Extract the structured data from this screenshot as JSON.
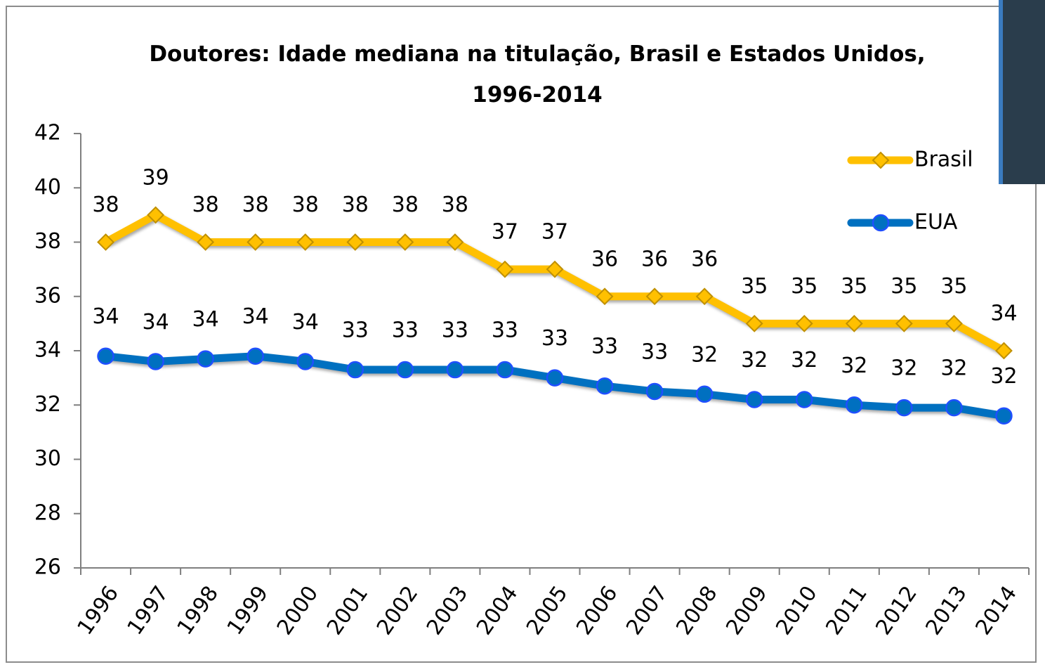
{
  "chart_data": {
    "type": "line",
    "title": "Doutores: Idade mediana na titulação, Brasil e Estados Unidos, 1996-2014",
    "categories": [
      "1996",
      "1997",
      "1998",
      "1999",
      "2000",
      "2001",
      "2002",
      "2003",
      "2004",
      "2005",
      "2006",
      "2007",
      "2008",
      "2009",
      "2010",
      "2011",
      "2012",
      "2013",
      "2014"
    ],
    "series": [
      {
        "name": "Brasil",
        "color": "#FFC000",
        "marker": "diamond",
        "values": [
          38,
          39,
          38,
          38,
          38,
          38,
          38,
          38,
          37,
          37,
          36,
          36,
          36,
          35,
          35,
          35,
          35,
          35,
          34
        ]
      },
      {
        "name": "EUA",
        "color": "#0070C0",
        "marker": "circle",
        "values": [
          33.8,
          33.6,
          33.7,
          33.8,
          33.6,
          33.3,
          33.3,
          33.3,
          33.3,
          33.0,
          32.7,
          32.5,
          32.4,
          32.2,
          32.2,
          32.0,
          31.9,
          31.9,
          31.6
        ],
        "value_labels": [
          "34",
          "34",
          "34",
          "34",
          "34",
          "33",
          "33",
          "33",
          "33",
          "33",
          "33",
          "33",
          "32",
          "32",
          "32",
          "32",
          "32",
          "32",
          "32"
        ]
      }
    ],
    "ylim": [
      26,
      42
    ],
    "yticks": [
      26,
      28,
      30,
      32,
      34,
      36,
      38,
      40,
      42
    ],
    "grid": false,
    "legend": "top-right"
  }
}
